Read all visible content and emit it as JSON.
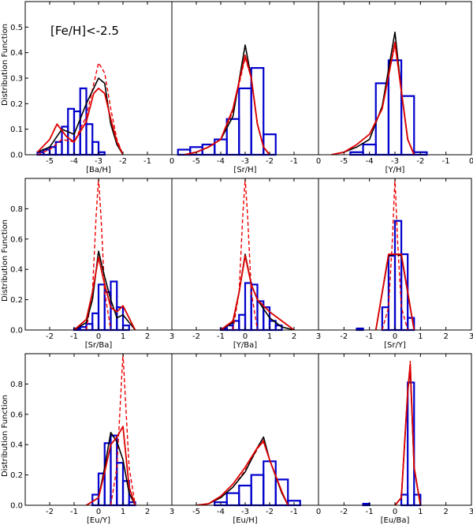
{
  "figure": {
    "ylabel": "Distribution Function",
    "annotation": "[Fe/H]<-2.5",
    "colors": {
      "bars": "#0000cc",
      "black_line": "#000000",
      "red_line": "#dd0000",
      "red_dashed": "#ee0000"
    }
  },
  "chart_data": [
    {
      "type": "bar",
      "xlabel": "[Ba/H]",
      "xlim": [
        -6,
        0
      ],
      "ylim": [
        0,
        0.6
      ],
      "xticks": [
        -5,
        -4,
        -3,
        -2,
        -1,
        0
      ],
      "yticks": [
        0.0,
        0.1,
        0.2,
        0.3,
        0.4,
        0.5
      ],
      "bins": [
        -5.5,
        -5.25,
        -5.0,
        -4.75,
        -4.5,
        -4.25,
        -4.0,
        -3.75,
        -3.5,
        -3.25,
        -3.0,
        -2.75,
        -2.5,
        -2.25,
        -2.0,
        -1.75
      ],
      "bin_width": 0.25,
      "values": [
        0.01,
        0.02,
        0.03,
        0.05,
        0.11,
        0.18,
        0.17,
        0.26,
        0.12,
        0.05,
        0.01,
        0.0,
        0.0,
        0.0,
        0.0,
        0.0
      ],
      "series": [
        {
          "name": "black",
          "x": [
            -5.5,
            -5.0,
            -4.5,
            -4.0,
            -3.5,
            -3.0,
            -2.75,
            -2.5,
            -2.25,
            -2.0
          ],
          "y": [
            0.01,
            0.03,
            0.1,
            0.08,
            0.2,
            0.3,
            0.28,
            0.12,
            0.04,
            0.0
          ]
        },
        {
          "name": "red",
          "x": [
            -5.5,
            -5.0,
            -4.7,
            -4.3,
            -4.0,
            -3.5,
            -3.2,
            -3.0,
            -2.75,
            -2.5,
            -2.25,
            -2.0
          ],
          "y": [
            0.01,
            0.06,
            0.12,
            0.07,
            0.05,
            0.13,
            0.24,
            0.26,
            0.24,
            0.14,
            0.05,
            0.0
          ]
        },
        {
          "name": "red-dashed",
          "x": [
            -5.5,
            -5.0,
            -4.5,
            -4.0,
            -3.5,
            -3.0,
            -2.75,
            -2.5,
            -2.25,
            -2.0
          ],
          "y": [
            0.0,
            0.02,
            0.06,
            0.05,
            0.15,
            0.36,
            0.32,
            0.18,
            0.06,
            0.0
          ]
        }
      ]
    },
    {
      "type": "bar",
      "xlabel": "[Sr/H]",
      "xlim": [
        -6,
        0
      ],
      "ylim": [
        0,
        0.6
      ],
      "xticks": [
        -5,
        -4,
        -3,
        -2,
        -1,
        0
      ],
      "yticks": [],
      "bins": [
        -5.75,
        -5.25,
        -4.75,
        -4.25,
        -3.75,
        -3.25,
        -2.75,
        -2.25
      ],
      "bin_width": 0.5,
      "values": [
        0.02,
        0.03,
        0.04,
        0.06,
        0.14,
        0.26,
        0.34,
        0.08
      ],
      "series": [
        {
          "name": "black",
          "x": [
            -5.5,
            -5.0,
            -4.5,
            -4.0,
            -3.5,
            -3.0,
            -2.75,
            -2.5,
            -2.25,
            -2.0
          ],
          "y": [
            0.0,
            0.01,
            0.03,
            0.06,
            0.15,
            0.43,
            0.3,
            0.12,
            0.03,
            0.0
          ]
        },
        {
          "name": "red",
          "x": [
            -5.5,
            -5.0,
            -4.5,
            -4.0,
            -3.5,
            -3.0,
            -2.75,
            -2.5,
            -2.25,
            -2.0
          ],
          "y": [
            0.0,
            0.01,
            0.03,
            0.06,
            0.18,
            0.39,
            0.3,
            0.12,
            0.03,
            0.0
          ]
        },
        {
          "name": "red-dashed",
          "x": [
            -5.5,
            -5.0,
            -4.5,
            -4.0,
            -3.5,
            -3.0,
            -2.75,
            -2.5,
            -2.25,
            -2.0
          ],
          "y": [
            0.0,
            0.01,
            0.03,
            0.06,
            0.17,
            0.38,
            0.3,
            0.12,
            0.03,
            0.0
          ]
        }
      ]
    },
    {
      "type": "bar",
      "xlabel": "[Y/H]",
      "xlim": [
        -6,
        0
      ],
      "ylim": [
        0,
        0.6
      ],
      "xticks": [
        -5,
        -4,
        -3,
        -2,
        -1,
        0
      ],
      "yticks": [],
      "bins": [
        -4.75,
        -4.25,
        -3.75,
        -3.25,
        -2.75,
        -2.25
      ],
      "bin_width": 0.5,
      "values": [
        0.01,
        0.04,
        0.28,
        0.37,
        0.23,
        0.01
      ],
      "series": [
        {
          "name": "black",
          "x": [
            -5.5,
            -5.0,
            -4.5,
            -4.0,
            -3.5,
            -3.0,
            -2.75,
            -2.5,
            -2.25
          ],
          "y": [
            0.0,
            0.01,
            0.03,
            0.06,
            0.19,
            0.48,
            0.25,
            0.06,
            0.0
          ]
        },
        {
          "name": "red",
          "x": [
            -5.5,
            -5.0,
            -4.5,
            -4.0,
            -3.5,
            -3.0,
            -2.75,
            -2.5,
            -2.25
          ],
          "y": [
            0.0,
            0.01,
            0.04,
            0.08,
            0.18,
            0.44,
            0.25,
            0.06,
            0.0
          ]
        },
        {
          "name": "red-dashed",
          "x": [
            -5.5,
            -5.0,
            -4.5,
            -4.0,
            -3.5,
            -3.0,
            -2.75,
            -2.5,
            -2.25
          ],
          "y": [
            0.0,
            0.01,
            0.03,
            0.06,
            0.19,
            0.43,
            0.25,
            0.06,
            0.0
          ]
        }
      ]
    },
    {
      "type": "bar",
      "xlabel": "[Sr/Ba]",
      "xlim": [
        -3,
        3
      ],
      "ylim": [
        0,
        1.0
      ],
      "xticks": [
        -2,
        -1,
        0,
        1,
        2,
        3
      ],
      "yticks": [
        0.0,
        0.2,
        0.4,
        0.6,
        0.8
      ],
      "bins": [
        -1.0,
        -0.75,
        -0.5,
        -0.25,
        0.0,
        0.25,
        0.5,
        0.75,
        1.0,
        1.25,
        1.5
      ],
      "bin_width": 0.25,
      "values": [
        0.01,
        0.02,
        0.04,
        0.11,
        0.3,
        0.25,
        0.32,
        0.15,
        0.03,
        0.0,
        0.0
      ],
      "series": [
        {
          "name": "black",
          "x": [
            -1.0,
            -0.5,
            -0.25,
            0.0,
            0.25,
            0.5,
            0.75,
            1.0,
            1.5
          ],
          "y": [
            0.0,
            0.05,
            0.2,
            0.52,
            0.35,
            0.2,
            0.08,
            0.1,
            0.0
          ]
        },
        {
          "name": "red",
          "x": [
            -1.0,
            -0.5,
            -0.25,
            0.0,
            0.25,
            0.5,
            0.75,
            1.0,
            1.5
          ],
          "y": [
            0.0,
            0.07,
            0.25,
            0.48,
            0.3,
            0.15,
            0.12,
            0.16,
            0.0
          ]
        },
        {
          "name": "red-dashed",
          "x": [
            -0.5,
            -0.25,
            -0.1,
            0.0,
            0.1,
            0.25,
            0.5
          ],
          "y": [
            0.0,
            0.25,
            0.75,
            1.0,
            0.75,
            0.25,
            0.0
          ]
        }
      ]
    },
    {
      "type": "bar",
      "xlabel": "[Y/Ba]",
      "xlim": [
        -3,
        3
      ],
      "ylim": [
        0,
        1.0
      ],
      "xticks": [
        -2,
        -1,
        0,
        1,
        2,
        3
      ],
      "yticks": [],
      "bins": [
        -1.0,
        -0.75,
        -0.5,
        -0.25,
        0.0,
        0.25,
        0.5,
        0.75,
        1.0,
        1.25,
        1.5
      ],
      "bin_width": 0.25,
      "values": [
        0.01,
        0.03,
        0.06,
        0.1,
        0.31,
        0.3,
        0.19,
        0.15,
        0.06,
        0.03,
        0.0
      ],
      "series": [
        {
          "name": "black",
          "x": [
            -1.0,
            -0.5,
            -0.25,
            0.0,
            0.25,
            0.5,
            1.0,
            1.5,
            2.0
          ],
          "y": [
            0.0,
            0.05,
            0.25,
            0.5,
            0.3,
            0.2,
            0.08,
            0.02,
            0.0
          ]
        },
        {
          "name": "red",
          "x": [
            -1.0,
            -0.5,
            -0.25,
            0.0,
            0.25,
            0.5,
            1.0,
            1.5,
            2.0
          ],
          "y": [
            0.0,
            0.06,
            0.25,
            0.49,
            0.3,
            0.2,
            0.12,
            0.06,
            0.0
          ]
        },
        {
          "name": "red-dashed",
          "x": [
            -0.5,
            -0.25,
            -0.1,
            0.0,
            0.1,
            0.25,
            0.5
          ],
          "y": [
            0.0,
            0.25,
            0.75,
            1.0,
            0.75,
            0.25,
            0.0
          ]
        }
      ]
    },
    {
      "type": "bar",
      "xlabel": "[Sr/Y]",
      "xlim": [
        -3,
        3
      ],
      "ylim": [
        0,
        1.0
      ],
      "xticks": [
        -2,
        -1,
        0,
        1,
        2,
        3
      ],
      "yticks": [],
      "bins": [
        -1.5,
        -0.5,
        -0.25,
        0.0,
        0.25,
        0.5
      ],
      "bin_width": 0.25,
      "values": [
        0.01,
        0.15,
        0.49,
        0.72,
        0.5,
        0.08
      ],
      "series": [
        {
          "name": "black",
          "x": [
            -0.75,
            -0.25,
            0.0,
            0.25,
            0.75
          ],
          "y": [
            0.0,
            0.49,
            0.5,
            0.49,
            0.0
          ]
        },
        {
          "name": "red",
          "x": [
            -0.75,
            -0.25,
            0.0,
            0.25,
            0.75
          ],
          "y": [
            0.0,
            0.5,
            0.5,
            0.5,
            0.0
          ]
        },
        {
          "name": "red-dashed",
          "x": [
            -0.5,
            -0.25,
            -0.1,
            0.0,
            0.1,
            0.25,
            0.5
          ],
          "y": [
            0.0,
            0.15,
            0.6,
            1.0,
            0.6,
            0.15,
            0.0
          ]
        }
      ]
    },
    {
      "type": "bar",
      "xlabel": "[Eu/Y]",
      "xlim": [
        -3,
        3
      ],
      "ylim": [
        0,
        1.0
      ],
      "xticks": [
        -2,
        -1,
        0,
        1,
        2,
        3
      ],
      "yticks": [
        0.0,
        0.2,
        0.4,
        0.6,
        0.8
      ],
      "bins": [
        -0.25,
        0.0,
        0.25,
        0.5,
        0.75,
        1.0,
        1.25
      ],
      "bin_width": 0.25,
      "values": [
        0.07,
        0.21,
        0.41,
        0.46,
        0.28,
        0.16,
        0.02
      ],
      "series": [
        {
          "name": "black",
          "x": [
            -0.5,
            0.0,
            0.25,
            0.5,
            0.75,
            1.0,
            1.25,
            1.5
          ],
          "y": [
            0.0,
            0.05,
            0.25,
            0.48,
            0.42,
            0.3,
            0.08,
            0.0
          ]
        },
        {
          "name": "red",
          "x": [
            -0.5,
            0.0,
            0.25,
            0.5,
            0.75,
            1.0,
            1.25,
            1.5
          ],
          "y": [
            0.0,
            0.05,
            0.22,
            0.4,
            0.45,
            0.52,
            0.12,
            0.0
          ]
        },
        {
          "name": "red-dashed",
          "x": [
            0.5,
            0.75,
            0.9,
            1.0,
            1.1,
            1.25,
            1.5
          ],
          "y": [
            0.0,
            0.25,
            0.7,
            1.0,
            0.7,
            0.25,
            0.0
          ]
        }
      ]
    },
    {
      "type": "bar",
      "xlabel": "[Eu/H]",
      "xlim": [
        -6,
        0
      ],
      "ylim": [
        0,
        1.0
      ],
      "xticks": [
        -5,
        -4,
        -3,
        -2,
        -1,
        0
      ],
      "yticks": [],
      "bins": [
        -4.25,
        -3.75,
        -3.25,
        -2.75,
        -2.25,
        -1.75,
        -1.25
      ],
      "bin_width": 0.5,
      "values": [
        0.02,
        0.08,
        0.13,
        0.2,
        0.29,
        0.17,
        0.03
      ],
      "series": [
        {
          "name": "black",
          "x": [
            -5.0,
            -4.5,
            -4.0,
            -3.5,
            -3.0,
            -2.5,
            -2.25,
            -2.0,
            -1.5,
            -1.25
          ],
          "y": [
            0.0,
            0.01,
            0.05,
            0.12,
            0.22,
            0.38,
            0.45,
            0.3,
            0.08,
            0.0
          ]
        },
        {
          "name": "red",
          "x": [
            -5.0,
            -4.5,
            -4.0,
            -3.5,
            -3.0,
            -2.5,
            -2.25,
            -2.0,
            -1.5,
            -1.25
          ],
          "y": [
            0.0,
            0.01,
            0.06,
            0.14,
            0.25,
            0.38,
            0.42,
            0.3,
            0.09,
            0.0
          ]
        },
        {
          "name": "red-dashed",
          "x": [
            -5.0,
            -4.5,
            -4.0,
            -3.5,
            -3.0,
            -2.5,
            -2.25,
            -2.0,
            -1.5,
            -1.25
          ],
          "y": [
            0.0,
            0.01,
            0.05,
            0.12,
            0.23,
            0.37,
            0.43,
            0.3,
            0.08,
            0.0
          ]
        }
      ]
    },
    {
      "type": "bar",
      "xlabel": "[Eu/Ba]",
      "xlim": [
        -3,
        3
      ],
      "ylim": [
        0,
        1.0
      ],
      "xticks": [
        -2,
        -1,
        0,
        1,
        2,
        3
      ],
      "yticks": [],
      "bins": [
        -1.25,
        0.25,
        0.5,
        0.75
      ],
      "bin_width": 0.25,
      "values": [
        0.01,
        0.07,
        0.81,
        0.07
      ],
      "series": [
        {
          "name": "black",
          "x": [
            0.0,
            0.25,
            0.5,
            0.6,
            0.75,
            1.0
          ],
          "y": [
            0.0,
            0.05,
            0.75,
            0.9,
            0.25,
            0.0
          ]
        },
        {
          "name": "red",
          "x": [
            0.0,
            0.25,
            0.5,
            0.6,
            0.75,
            1.0
          ],
          "y": [
            0.0,
            0.05,
            0.75,
            0.93,
            0.25,
            0.0
          ]
        },
        {
          "name": "red-dashed",
          "x": [
            0.0,
            0.25,
            0.5,
            0.6,
            0.75,
            1.0
          ],
          "y": [
            0.0,
            0.05,
            0.75,
            0.95,
            0.25,
            0.0
          ]
        }
      ]
    }
  ]
}
